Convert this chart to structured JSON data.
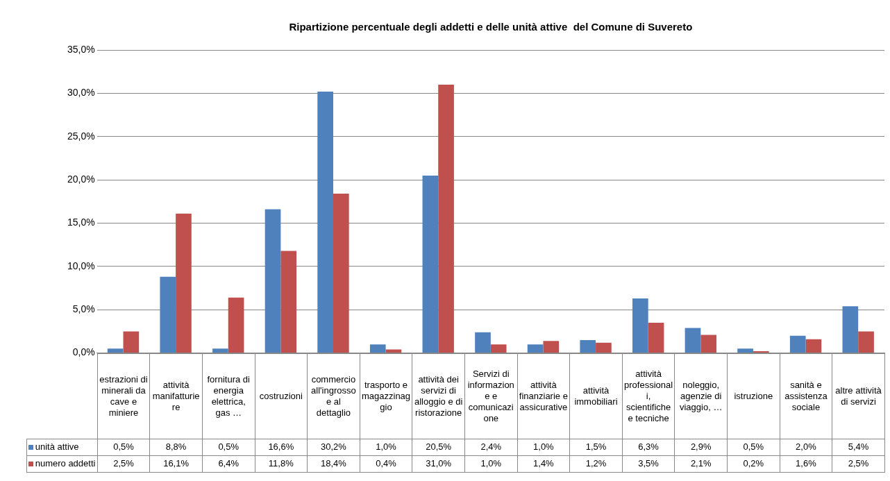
{
  "chart_data": {
    "type": "bar",
    "title": "Ripartizione percentuale degli addetti e delle unità attive  del Comune di Suvereto",
    "categories": [
      "estrazioni di minerali da cave e miniere",
      "attività manifatturiere",
      "fornitura di energia elettrica, gas …",
      "costruzioni",
      "commercio all'ingrosso e al dettaglio",
      "trasporto e magazzinaggio",
      "attività dei servizi di alloggio e di ristorazione",
      "Servizi di informazione e comunicazione",
      "attività finanziarie e assicurative",
      "attività immobiliari",
      "attività professionali, scientifiche e tecniche",
      "noleggio, agenzie di viaggio, …",
      "istruzione",
      "sanità e assistenza sociale",
      "altre attività di servizi"
    ],
    "series": [
      {
        "name": "unità attive",
        "color": "#4f81bd",
        "values": [
          0.5,
          8.8,
          0.5,
          16.6,
          30.2,
          1.0,
          20.5,
          2.4,
          1.0,
          1.5,
          6.3,
          2.9,
          0.5,
          2.0,
          5.4
        ],
        "value_labels": [
          "0,5%",
          "8,8%",
          "0,5%",
          "16,6%",
          "30,2%",
          "1,0%",
          "20,5%",
          "2,4%",
          "1,0%",
          "1,5%",
          "6,3%",
          "2,9%",
          "0,5%",
          "2,0%",
          "5,4%"
        ]
      },
      {
        "name": "numero addetti",
        "color": "#c0504d",
        "values": [
          2.5,
          16.1,
          6.4,
          11.8,
          18.4,
          0.4,
          31.0,
          1.0,
          1.4,
          1.2,
          3.5,
          2.1,
          0.2,
          1.6,
          2.5
        ],
        "value_labels": [
          "2,5%",
          "16,1%",
          "6,4%",
          "11,8%",
          "18,4%",
          "0,4%",
          "31,0%",
          "1,0%",
          "1,4%",
          "1,2%",
          "3,5%",
          "2,1%",
          "0,2%",
          "1,6%",
          "2,5%"
        ]
      }
    ],
    "ylim": [
      0,
      35
    ],
    "yticks": [
      {
        "value": 0,
        "label": "0,0%"
      },
      {
        "value": 5,
        "label": "5,0%"
      },
      {
        "value": 10,
        "label": "10,0%"
      },
      {
        "value": 15,
        "label": "15,0%"
      },
      {
        "value": 20,
        "label": "20,0%"
      },
      {
        "value": 25,
        "label": "25,0%"
      },
      {
        "value": 30,
        "label": "30,0%"
      },
      {
        "value": 35,
        "label": "35,0%"
      }
    ],
    "grid": "y",
    "legend": "bottom"
  }
}
